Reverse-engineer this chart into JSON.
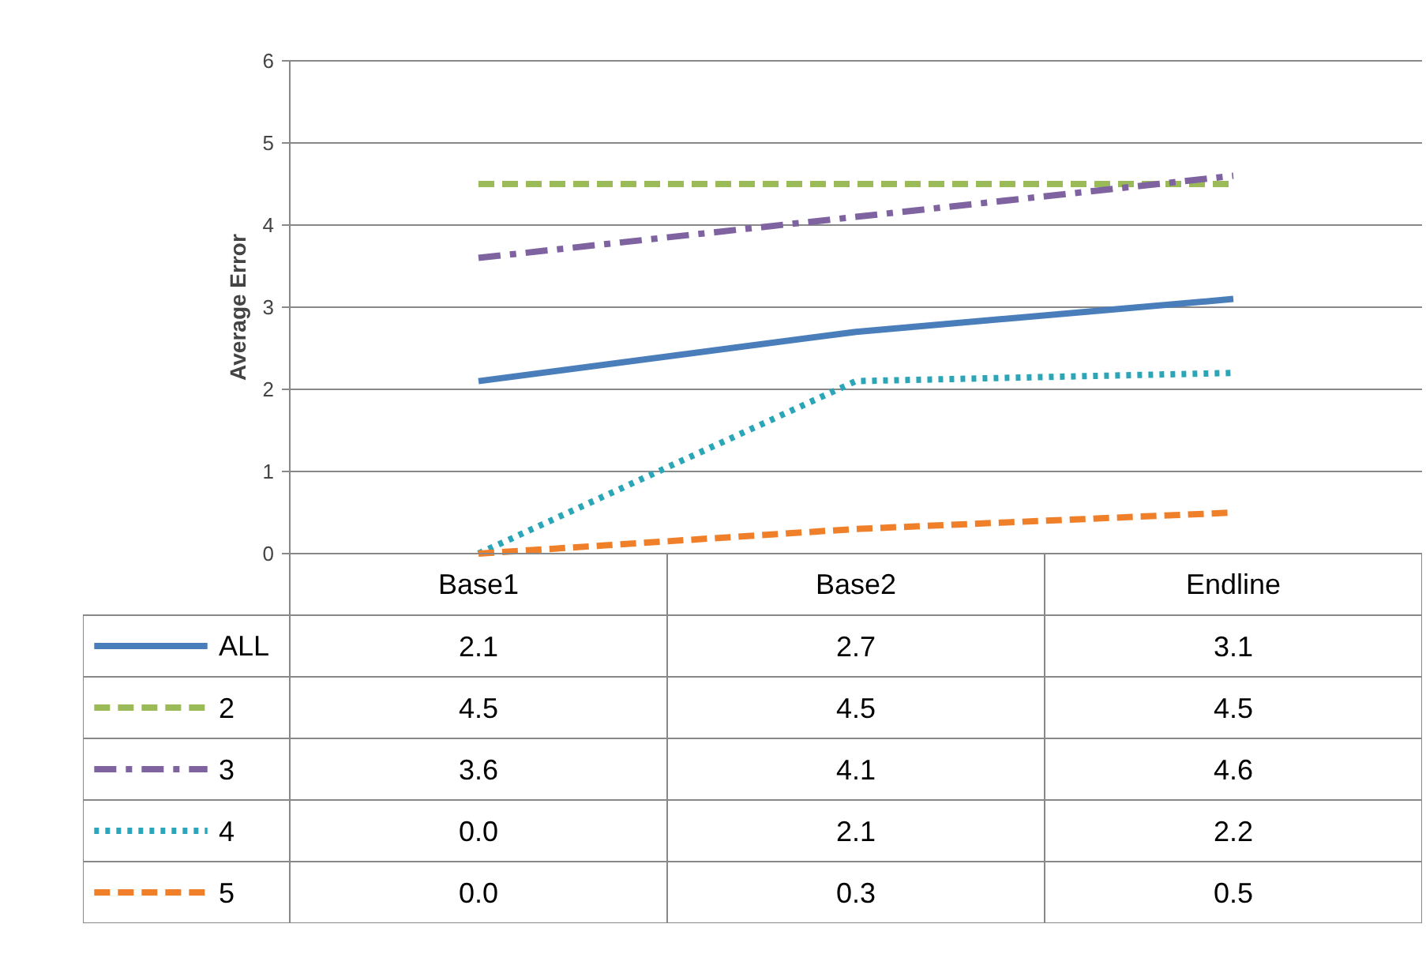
{
  "chart_data": {
    "type": "line",
    "ylabel": "Average Error",
    "categories": [
      "Base1",
      "Base2",
      "Endline"
    ],
    "ylim": [
      0,
      6
    ],
    "yticks": [
      0,
      1,
      2,
      3,
      4,
      5,
      6
    ],
    "grid": "y",
    "legend": "bottom",
    "series": [
      {
        "name": "ALL",
        "color": "#4a7ebb",
        "line_style": "solid",
        "values": [
          2.1,
          2.7,
          3.1
        ],
        "value_labels": [
          "2.1",
          "2.7",
          "3.1"
        ]
      },
      {
        "name": "2",
        "color": "#9bbb59",
        "line_style": "dashed",
        "values": [
          4.5,
          4.5,
          4.5
        ],
        "value_labels": [
          "4.5",
          "4.5",
          "4.5"
        ]
      },
      {
        "name": "3",
        "color": "#7f62a0",
        "line_style": "dashdot",
        "values": [
          3.6,
          4.1,
          4.6
        ],
        "value_labels": [
          "3.6",
          "4.1",
          "4.6"
        ]
      },
      {
        "name": "4",
        "color": "#2aa6b8",
        "line_style": "dotted",
        "values": [
          0.0,
          2.1,
          2.2
        ],
        "value_labels": [
          "0.0",
          "2.1",
          "2.2"
        ]
      },
      {
        "name": "5",
        "color": "#f07f2a",
        "line_style": "dashed",
        "values": [
          0.0,
          0.3,
          0.5
        ],
        "value_labels": [
          "0.0",
          "0.3",
          "0.5"
        ]
      }
    ]
  }
}
